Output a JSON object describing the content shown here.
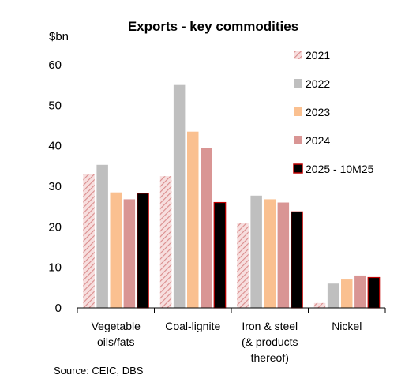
{
  "chart_data": {
    "type": "bar",
    "title": "Exports - key commodities",
    "ylabel": "$bn",
    "ylim": [
      0,
      60
    ],
    "yticks": [
      0,
      10,
      20,
      30,
      40,
      50,
      60
    ],
    "grid": false,
    "legend_position": "top-right",
    "categories": [
      [
        "Vegetable",
        "oils/fats"
      ],
      [
        "Coal-lignite"
      ],
      [
        "Iron & steel",
        "(& products",
        "thereof)"
      ],
      [
        "Nickel"
      ]
    ],
    "series": [
      {
        "name": "2021",
        "values": [
          33,
          32.5,
          21,
          1.2
        ],
        "color": "#e2a0a0",
        "pattern": "hatch"
      },
      {
        "name": "2022",
        "values": [
          35.3,
          55,
          27.7,
          6
        ],
        "color": "#bfbfbf"
      },
      {
        "name": "2023",
        "values": [
          28.5,
          43.5,
          26.8,
          7
        ],
        "color": "#fac090"
      },
      {
        "name": "2024",
        "values": [
          26.8,
          39.5,
          26,
          8
        ],
        "color": "#d99594"
      },
      {
        "name": "2025 - 10M25",
        "values": [
          28.3,
          26,
          23.7,
          7.5
        ],
        "color": "#000000",
        "border": "#c00000"
      }
    ],
    "source": "Source: CEIC, DBS"
  }
}
